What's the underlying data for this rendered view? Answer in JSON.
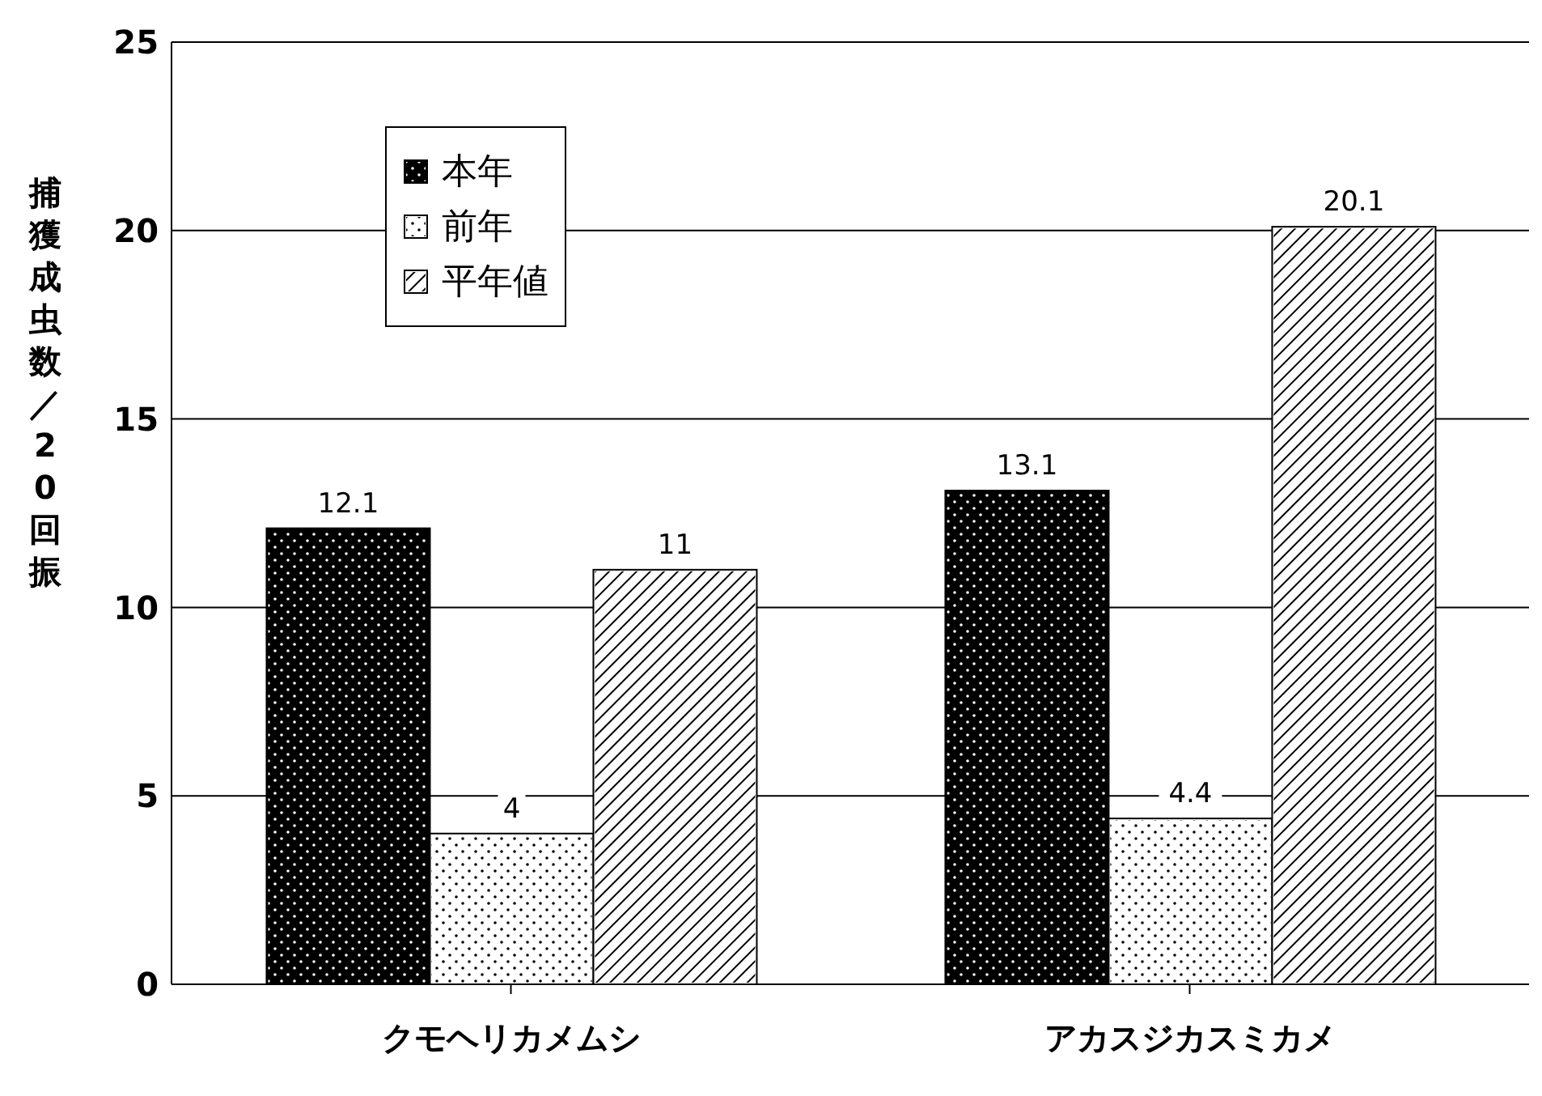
{
  "chart_data": {
    "type": "bar",
    "ylabel": "捕獲成虫数／20回振",
    "categories": [
      "クモヘリカメムシ",
      "アカスジカスミカメ"
    ],
    "series": [
      {
        "name": "本年",
        "color": "#000000",
        "values": [
          12.1,
          13.1
        ]
      },
      {
        "name": "前年",
        "color": "#ffffff",
        "values": [
          4,
          4.4
        ]
      },
      {
        "name": "平年値",
        "color": "#ffffff",
        "values": [
          11,
          20.1
        ]
      }
    ],
    "ylim": [
      0,
      25
    ],
    "yticks": [
      0,
      5,
      10,
      15,
      20,
      25
    ],
    "grid": "y",
    "legend": "top left",
    "data_labels": true
  }
}
